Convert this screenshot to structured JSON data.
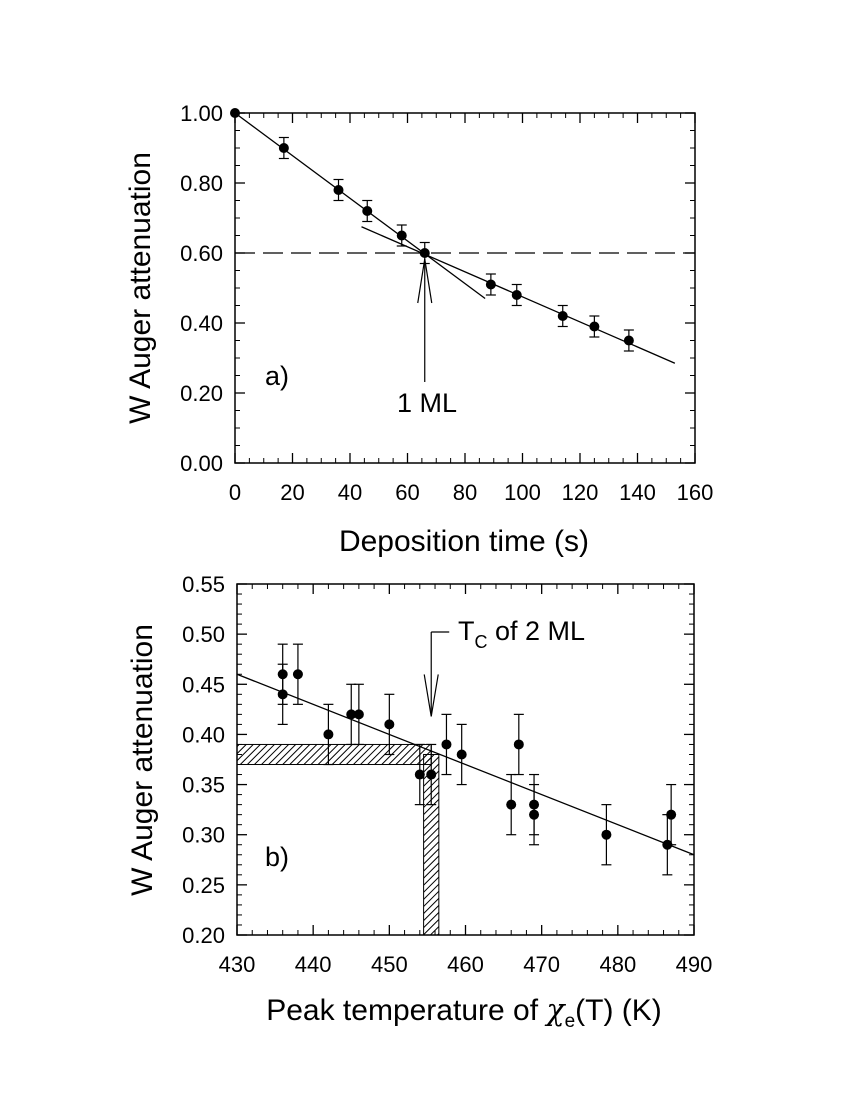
{
  "chart_data": [
    {
      "type": "scatter",
      "panel_label": "a)",
      "xlabel": "Deposition time (s)",
      "ylabel": "W Auger attenuation",
      "xlim": [
        0,
        160
      ],
      "ylim": [
        0.0,
        1.0
      ],
      "xticks": [
        0,
        20,
        40,
        60,
        80,
        100,
        120,
        140,
        160
      ],
      "yticks": [
        0.0,
        0.2,
        0.4,
        0.6,
        0.8,
        1.0
      ],
      "xtick_labels": [
        "0",
        "20",
        "40",
        "60",
        "80",
        "100",
        "120",
        "140",
        "160"
      ],
      "ytick_labels": [
        "0.00",
        "0.20",
        "0.40",
        "0.60",
        "0.80",
        "1.00"
      ],
      "points": [
        {
          "x": 0,
          "y": 1.0,
          "err": 0
        },
        {
          "x": 17,
          "y": 0.9,
          "err": 0.03
        },
        {
          "x": 36,
          "y": 0.78,
          "err": 0.03
        },
        {
          "x": 46,
          "y": 0.72,
          "err": 0.03
        },
        {
          "x": 58,
          "y": 0.65,
          "err": 0.03
        },
        {
          "x": 66,
          "y": 0.6,
          "err": 0.03
        },
        {
          "x": 89,
          "y": 0.51,
          "err": 0.03
        },
        {
          "x": 98,
          "y": 0.48,
          "err": 0.03
        },
        {
          "x": 114,
          "y": 0.42,
          "err": 0.03
        },
        {
          "x": 125,
          "y": 0.39,
          "err": 0.03
        },
        {
          "x": 137,
          "y": 0.35,
          "err": 0.03
        }
      ],
      "fit_lines": [
        {
          "x": [
            0,
            87
          ],
          "y": [
            1.0,
            0.47
          ]
        },
        {
          "x": [
            44,
            153
          ],
          "y": [
            0.675,
            0.285
          ]
        }
      ],
      "reference_line": {
        "y": 0.6,
        "style": "dashed"
      },
      "annotation": {
        "text": "1 ML",
        "x": 66,
        "y": 0.6
      }
    },
    {
      "type": "scatter",
      "panel_label": "b)",
      "xlabel_main": "Peak temperature of ",
      "xlabel_symbol": "χ",
      "xlabel_sub": "e",
      "xlabel_tail": "(T) (K)",
      "ylabel": "W Auger attenuation",
      "xlim": [
        430,
        490
      ],
      "ylim": [
        0.2,
        0.55
      ],
      "xticks": [
        430,
        440,
        450,
        460,
        470,
        480,
        490
      ],
      "yticks": [
        0.2,
        0.25,
        0.3,
        0.35,
        0.4,
        0.45,
        0.5,
        0.55
      ],
      "xtick_labels": [
        "430",
        "440",
        "450",
        "460",
        "470",
        "480",
        "490"
      ],
      "ytick_labels": [
        "0.20",
        "0.25",
        "0.30",
        "0.35",
        "0.40",
        "0.45",
        "0.50",
        "0.55"
      ],
      "points": [
        {
          "x": 436,
          "y": 0.46,
          "err": 0.03
        },
        {
          "x": 436,
          "y": 0.44,
          "err": 0.03
        },
        {
          "x": 438,
          "y": 0.46,
          "err": 0.03
        },
        {
          "x": 442,
          "y": 0.4,
          "err": 0.03
        },
        {
          "x": 445,
          "y": 0.42,
          "err": 0.03
        },
        {
          "x": 446,
          "y": 0.42,
          "err": 0.03
        },
        {
          "x": 450,
          "y": 0.41,
          "err": 0.03
        },
        {
          "x": 454,
          "y": 0.36,
          "err": 0.03
        },
        {
          "x": 455.5,
          "y": 0.36,
          "err": 0.03
        },
        {
          "x": 457.5,
          "y": 0.39,
          "err": 0.03
        },
        {
          "x": 459.5,
          "y": 0.38,
          "err": 0.03
        },
        {
          "x": 466,
          "y": 0.33,
          "err": 0.03
        },
        {
          "x": 467,
          "y": 0.39,
          "err": 0.03
        },
        {
          "x": 469,
          "y": 0.33,
          "err": 0.03
        },
        {
          "x": 469,
          "y": 0.32,
          "err": 0.03
        },
        {
          "x": 478.5,
          "y": 0.3,
          "err": 0.03
        },
        {
          "x": 486.5,
          "y": 0.29,
          "err": 0.03
        },
        {
          "x": 487,
          "y": 0.32,
          "err": 0.03
        }
      ],
      "fit_lines": [
        {
          "x": [
            430,
            490
          ],
          "y": [
            0.46,
            0.28
          ]
        }
      ],
      "hatched_regions": [
        {
          "x": [
            430,
            455.5
          ],
          "y": [
            0.37,
            0.39
          ]
        },
        {
          "x": [
            454.5,
            456.5
          ],
          "y": [
            0.2,
            0.38
          ]
        }
      ],
      "annotation": {
        "text_main": "T",
        "text_sub": "C",
        "text_tail": " of 2 ML",
        "x": 455.5,
        "y": 0.39
      }
    }
  ]
}
